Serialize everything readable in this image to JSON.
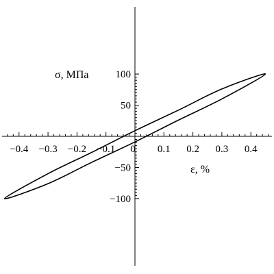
{
  "chart_data": {
    "type": "line",
    "title": "",
    "xlabel": "ε, %",
    "ylabel": "σ, МПа",
    "xlim": [
      -0.46,
      0.46
    ],
    "ylim": [
      -100,
      100
    ],
    "x_ticks": [
      -0.4,
      -0.3,
      -0.2,
      -0.1,
      0,
      0.1,
      0.2,
      0.3,
      0.4
    ],
    "x_tick_labels": [
      "−0.4",
      "−0.3",
      "−0.2",
      "−0.1",
      "0",
      "0.1",
      "0.2",
      "0.3",
      "0.4"
    ],
    "y_ticks": [
      -100,
      -50,
      50,
      100
    ],
    "y_tick_labels": [
      "−100",
      "−50",
      "50",
      "100"
    ],
    "grid": false,
    "series": [
      {
        "x": [
          0.45,
          0.3,
          0.15,
          0.0,
          -0.15,
          -0.3,
          -0.45,
          -0.3,
          -0.15,
          0.0,
          0.15,
          0.3,
          0.45
        ],
        "y": [
          100,
          76,
          42,
          9,
          -26,
          -60,
          -100,
          -76,
          -42,
          -9,
          26,
          60,
          100
        ]
      }
    ]
  }
}
